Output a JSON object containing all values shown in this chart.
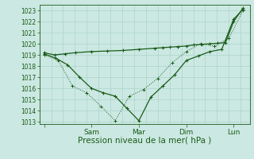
{
  "background_color": "#cce8e2",
  "grid_color": "#aad4cc",
  "dark_green": "#1a5c1a",
  "xlabel": "Pression niveau de la mer( hPa )",
  "ylim_min": 1012.8,
  "ylim_max": 1023.5,
  "yticks": [
    1013,
    1014,
    1015,
    1016,
    1017,
    1018,
    1019,
    1020,
    1021,
    1022,
    1023
  ],
  "xtick_pos": [
    0,
    1,
    2,
    3,
    4
  ],
  "xtick_lab": [
    "",
    "Sam",
    "Mar",
    "Dim",
    "Lun"
  ],
  "xlim": [
    -0.1,
    4.35
  ],
  "line1_x": [
    0.0,
    0.22,
    0.44,
    0.66,
    1.0,
    1.33,
    1.66,
    2.0,
    2.33,
    2.5,
    2.66,
    2.83,
    3.0,
    3.16,
    3.33,
    3.5,
    3.66,
    3.83,
    4.0,
    4.2
  ],
  "line1_y": [
    1019.2,
    1019.0,
    1019.1,
    1019.2,
    1019.3,
    1019.35,
    1019.4,
    1019.5,
    1019.6,
    1019.65,
    1019.7,
    1019.75,
    1019.8,
    1019.9,
    1019.95,
    1020.0,
    1020.05,
    1020.1,
    1022.0,
    1023.2
  ],
  "line2_x": [
    0.0,
    0.25,
    0.5,
    0.75,
    1.0,
    1.25,
    1.5,
    1.75,
    2.0,
    2.25,
    2.5,
    2.75,
    3.0,
    3.25,
    3.5,
    3.75,
    4.0,
    4.2
  ],
  "line2_y": [
    1019.1,
    1018.7,
    1018.1,
    1017.0,
    1016.0,
    1015.6,
    1015.3,
    1014.2,
    1013.1,
    1015.2,
    1016.2,
    1017.2,
    1018.5,
    1018.9,
    1019.3,
    1019.5,
    1022.2,
    1023.1
  ],
  "line3_x": [
    0.0,
    0.3,
    0.6,
    0.9,
    1.2,
    1.5,
    1.8,
    2.1,
    2.4,
    2.7,
    3.0,
    3.3,
    3.6,
    3.9,
    4.2
  ],
  "line3_y": [
    1019.0,
    1018.5,
    1016.2,
    1015.6,
    1014.4,
    1013.1,
    1015.3,
    1015.9,
    1016.9,
    1018.3,
    1019.3,
    1020.0,
    1019.8,
    1020.5,
    1023.0
  ],
  "ytick_fontsize": 5.5,
  "xtick_fontsize": 6.5,
  "xlabel_fontsize": 7.5
}
